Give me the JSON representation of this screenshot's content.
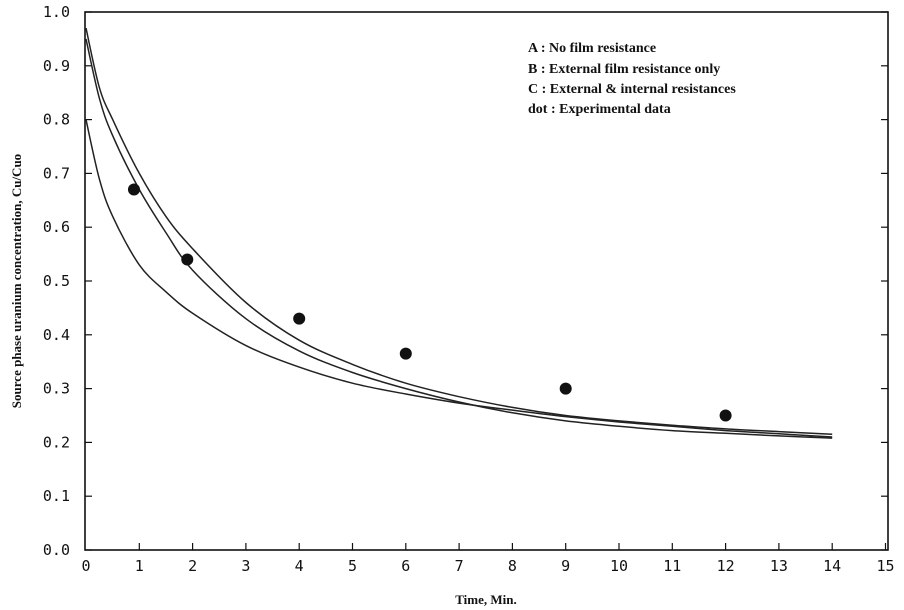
{
  "chart_data": {
    "type": "line",
    "xlabel": "Time, Min.",
    "ylabel": "Source phase uranium concentration, Cu/Cuo",
    "xlim": [
      0,
      15
    ],
    "ylim": [
      0.0,
      1.0
    ],
    "x_ticks": [
      0,
      1,
      2,
      3,
      4,
      5,
      6,
      7,
      8,
      9,
      10,
      11,
      12,
      13,
      14,
      15
    ],
    "y_ticks": [
      "0.0",
      "0.1",
      "0.2",
      "0.3",
      "0.4",
      "0.5",
      "0.6",
      "0.7",
      "0.8",
      "0.9",
      "1.0"
    ],
    "legend": [
      "A : No film resistance",
      "B : External film resistance only",
      "C : External & internal resistances",
      "dot : Experimental data"
    ],
    "legend_position": "top-right",
    "grid": false,
    "series": [
      {
        "x": [
          0,
          0.25,
          0.5,
          1,
          1.5,
          2,
          3,
          4,
          5,
          6,
          7,
          8,
          9,
          10,
          11,
          12,
          13,
          14
        ],
        "y": [
          0.97,
          0.86,
          0.8,
          0.7,
          0.62,
          0.56,
          0.46,
          0.39,
          0.345,
          0.31,
          0.285,
          0.265,
          0.25,
          0.24,
          0.232,
          0.225,
          0.22,
          0.215
        ]
      },
      {
        "x": [
          0,
          0.25,
          0.5,
          1,
          1.5,
          2,
          3,
          4,
          5,
          6,
          7,
          8,
          9,
          10,
          11,
          12,
          13,
          14
        ],
        "y": [
          0.95,
          0.84,
          0.77,
          0.67,
          0.59,
          0.52,
          0.43,
          0.37,
          0.33,
          0.3,
          0.275,
          0.255,
          0.24,
          0.23,
          0.222,
          0.217,
          0.212,
          0.208
        ]
      },
      {
        "x": [
          0,
          0.25,
          0.5,
          1,
          1.5,
          2,
          3,
          4,
          5,
          6,
          7,
          8,
          9,
          10,
          11,
          12,
          13,
          14
        ],
        "y": [
          0.8,
          0.69,
          0.62,
          0.53,
          0.48,
          0.44,
          0.38,
          0.34,
          0.31,
          0.29,
          0.273,
          0.26,
          0.248,
          0.238,
          0.23,
          0.222,
          0.216,
          0.21
        ]
      }
    ],
    "points": {
      "x": [
        0.9,
        1.9,
        4,
        6,
        9,
        12
      ],
      "y": [
        0.67,
        0.54,
        0.43,
        0.365,
        0.3,
        0.25
      ]
    }
  }
}
